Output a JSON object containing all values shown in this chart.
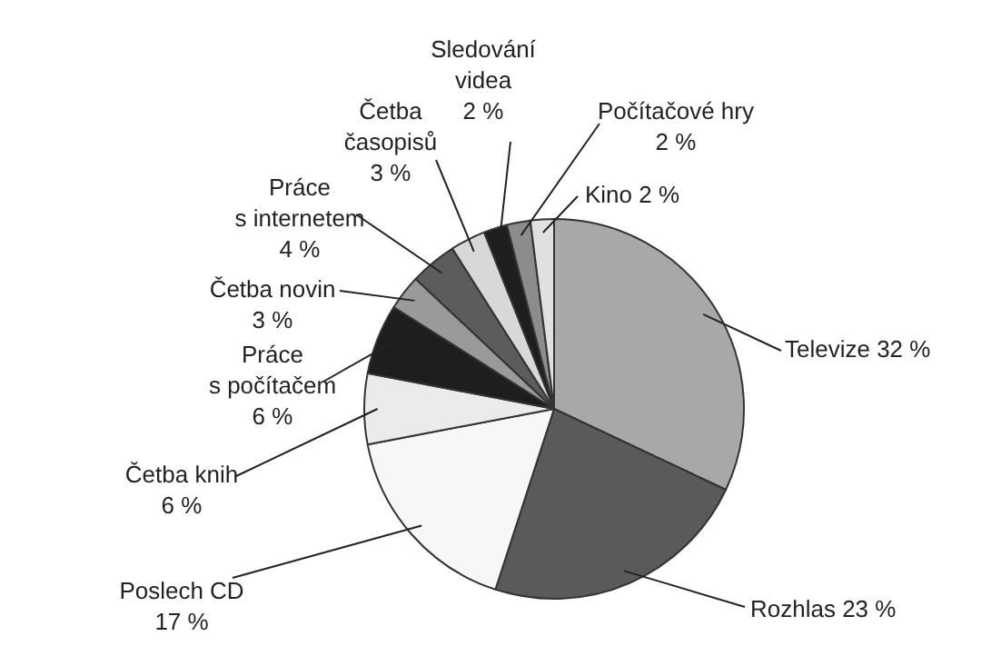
{
  "chart_data": {
    "type": "pie",
    "categories": [
      "Televize",
      "Rozhlas",
      "Poslech CD",
      "Četba knih",
      "Práce s počítačem",
      "Četba novin",
      "Práce s internetem",
      "Četba časopisů",
      "Sledování videa",
      "Počítačové hry",
      "Kino"
    ],
    "values": [
      32,
      23,
      17,
      6,
      6,
      3,
      4,
      3,
      2,
      2,
      2
    ],
    "value_labels": [
      "32 %",
      "23 %",
      "17 %",
      "6 %",
      "6 %",
      "3 %",
      "4 %",
      "3 %",
      "2 %",
      "2 %",
      "2 %"
    ],
    "colors": [
      "#a8a8a8",
      "#5a5a5a",
      "#f7f7f7",
      "#ebebeb",
      "#1e1e1e",
      "#9a9a9a",
      "#5c5c5c",
      "#d8d8d8",
      "#1e1e1e",
      "#8c8c8c",
      "#e0e0e0"
    ]
  }
}
